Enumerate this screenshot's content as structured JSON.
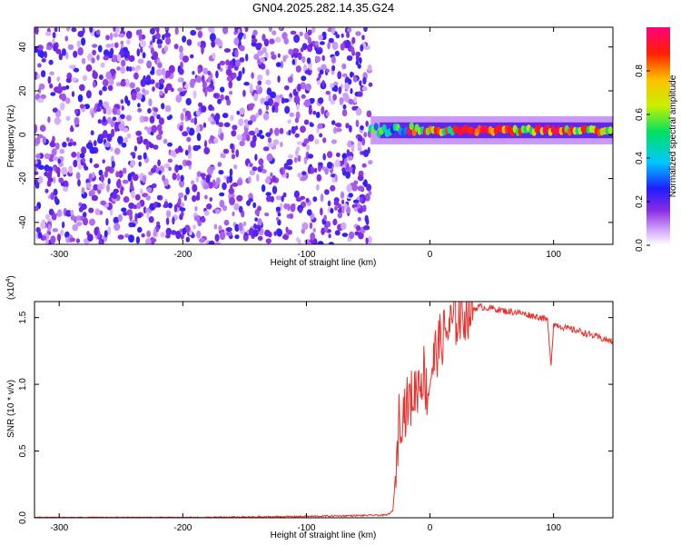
{
  "title": "GN04.2025.282.14.35.G24",
  "chart_data": [
    {
      "type": "heatmap",
      "xlabel": "Height of straight line (km)",
      "ylabel": "Frequency (Hz)",
      "xlim": [
        -320,
        148
      ],
      "ylim": [
        -50,
        49
      ],
      "xticks": [
        -300,
        -200,
        -100,
        0,
        100
      ],
      "yticks": [
        -40,
        -20,
        0,
        20,
        40
      ],
      "colorbar": {
        "label": "Normalized spectral amplitude",
        "range": [
          0,
          1
        ],
        "ticks": [
          0.0,
          0.2,
          0.4,
          0.6,
          0.8
        ],
        "tick_labels": [
          "0.0",
          "0.2",
          "0.4",
          "0.6",
          "0.8"
        ],
        "colormap": "rainbow (white-purple-blue-cyan-green-yellow-red-magenta)"
      },
      "regions": [
        {
          "x_range": [
            -320,
            -48
          ],
          "frequency_range": [
            -50,
            49
          ],
          "amplitude_range": [
            0.05,
            0.25
          ],
          "pattern": "broadband noise"
        },
        {
          "x_range": [
            -48,
            148
          ],
          "frequency_center": 2,
          "frequency_halfwidth": 4,
          "peak_amplitude": 1.0,
          "pattern": "narrow band near 0-5 Hz"
        }
      ],
      "grid": false
    },
    {
      "type": "line",
      "xlabel": "Height of straight line (km)",
      "ylabel": "SNR (10 * v/v)",
      "y_scale_note": "(x10^4)",
      "xlim": [
        -320,
        148
      ],
      "ylim": [
        0,
        1.62
      ],
      "xticks": [
        -300,
        -200,
        -100,
        0,
        100
      ],
      "yticks": [
        0.0,
        0.5,
        1.0,
        1.5
      ],
      "ytick_labels": [
        "0.0",
        "0.5",
        "1.0",
        "1.5"
      ],
      "series": [
        {
          "color": "#e8322d",
          "x": [
            -320,
            -200,
            -100,
            -35,
            -30,
            -27,
            -25,
            -22,
            -18,
            -12,
            -5,
            -2,
            0,
            5,
            10,
            20,
            30,
            40,
            50,
            60,
            70,
            80,
            90,
            95,
            98,
            100,
            105,
            110,
            120,
            130,
            140,
            148
          ],
          "y": [
            0.0,
            0.0,
            0.01,
            0.02,
            0.05,
            0.45,
            0.75,
            0.8,
            0.85,
            0.95,
            1.1,
            0.9,
            1.05,
            1.25,
            1.35,
            1.48,
            1.55,
            1.58,
            1.57,
            1.55,
            1.54,
            1.52,
            1.5,
            1.48,
            1.15,
            1.45,
            1.44,
            1.42,
            1.4,
            1.37,
            1.34,
            1.32
          ]
        }
      ],
      "grid": false
    }
  ]
}
